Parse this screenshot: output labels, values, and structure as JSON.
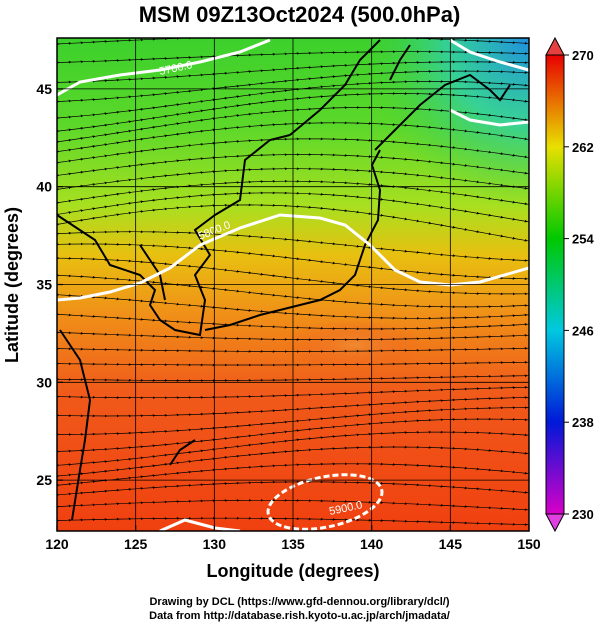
{
  "title": "MSM 09Z13Oct2024 (500.0hPa)",
  "xlabel": "Longitude (degrees)",
  "ylabel": "Latitude  (degrees)",
  "x_ticks": [
    "120",
    "125",
    "130",
    "135",
    "140",
    "145",
    "150"
  ],
  "y_ticks": [
    "25",
    "30",
    "35",
    "40",
    "45"
  ],
  "colorbar": {
    "min": 230,
    "max": 270,
    "ticks": [
      "230",
      "238",
      "246",
      "254",
      "262",
      "270"
    ],
    "colors": [
      "#d800c8",
      "#0018d8",
      "#00c8e0",
      "#00c800",
      "#e8e000",
      "#e80000"
    ]
  },
  "contour_labels": [
    "5700.0",
    "5800.0",
    "5900.0"
  ],
  "credits": [
    "Drawing by DCL (https://www.gfd-dennou.org/library/dcl/)",
    "Data from http://database.rish.kyoto-u.ac.jp/arch/jmadata/"
  ],
  "chart_data": {
    "type": "heatmap",
    "title": "MSM 09Z13Oct2024 (500.0hPa)",
    "xlabel": "Longitude (degrees)",
    "ylabel": "Latitude  (degrees)",
    "xlim": [
      120,
      150
    ],
    "ylim": [
      22.4,
      47.6
    ],
    "color_range": [
      230,
      270
    ],
    "contour_levels": [
      5700,
      5800,
      5900
    ],
    "grid": true,
    "overlays": [
      "streamlines",
      "coastlines",
      "height contours"
    ]
  }
}
